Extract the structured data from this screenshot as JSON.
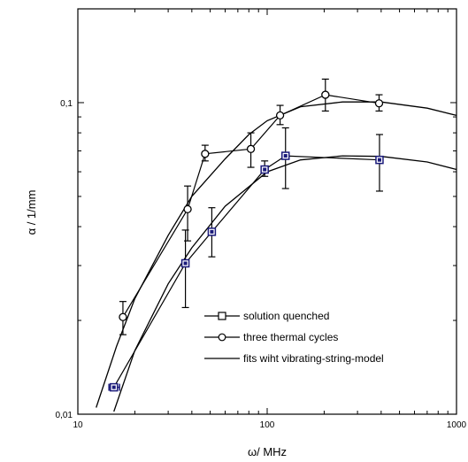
{
  "chart_data": {
    "type": "scatter",
    "x_scale": "log",
    "y_scale": "log",
    "xlim": [
      10,
      1000
    ],
    "ylim": [
      0.01,
      0.2
    ],
    "xlabel": "ω/ MHz",
    "ylabel": "α / 1/mm",
    "x_ticks": [
      {
        "value": 10,
        "label": "10"
      },
      {
        "value": 100,
        "label": "100"
      },
      {
        "value": 1000,
        "label": "1000"
      }
    ],
    "y_ticks": [
      {
        "value": 0.01,
        "label": "0,01"
      },
      {
        "value": 0.1,
        "label": "0,1"
      }
    ],
    "grid": false,
    "legend_position": "lower-right",
    "series": [
      {
        "name": "solution quenched",
        "marker": "square",
        "color": "#1a1a7a",
        "points": [
          {
            "x": 15.5,
            "y": 0.0122,
            "xerr": [
              14.6,
              16.6
            ]
          },
          {
            "x": 37,
            "y": 0.0305,
            "yerr": [
              0.022,
              0.039
            ]
          },
          {
            "x": 51,
            "y": 0.0385,
            "yerr": [
              0.032,
              0.046
            ]
          },
          {
            "x": 97,
            "y": 0.061,
            "yerr": [
              0.058,
              0.065
            ]
          },
          {
            "x": 125,
            "y": 0.0675,
            "yerr": [
              0.053,
              0.083
            ]
          },
          {
            "x": 392,
            "y": 0.0655,
            "yerr": [
              0.052,
              0.079
            ]
          }
        ]
      },
      {
        "name": "three thermal cycles",
        "marker": "circle",
        "color": "#000000",
        "points": [
          {
            "x": 17.3,
            "y": 0.0205,
            "yerr": [
              0.018,
              0.023
            ]
          },
          {
            "x": 38,
            "y": 0.0455,
            "yerr": [
              0.036,
              0.054
            ]
          },
          {
            "x": 47,
            "y": 0.0685,
            "yerr": [
              0.065,
              0.073
            ]
          },
          {
            "x": 82,
            "y": 0.071,
            "yerr": [
              0.062,
              0.08
            ]
          },
          {
            "x": 117,
            "y": 0.091,
            "yerr": [
              0.085,
              0.098
            ]
          },
          {
            "x": 203,
            "y": 0.106,
            "yerr": [
              0.094,
              0.119
            ]
          },
          {
            "x": 390,
            "y": 0.0995,
            "yerr": [
              0.094,
              0.106
            ]
          }
        ]
      },
      {
        "name": "fits wiht vibrating-string-model",
        "marker": "line",
        "color": "#000000",
        "curves": [
          [
            [
              12.5,
              0.0105
            ],
            [
              16,
              0.0165
            ],
            [
              20,
              0.0235
            ],
            [
              30,
              0.0375
            ],
            [
              40,
              0.05
            ],
            [
              60,
              0.066
            ],
            [
              80,
              0.079
            ],
            [
              100,
              0.0875
            ],
            [
              150,
              0.097
            ],
            [
              250,
              0.1005
            ],
            [
              400,
              0.1005
            ],
            [
              700,
              0.096
            ],
            [
              1000,
              0.091
            ]
          ],
          [
            [
              15.5,
              0.0102
            ],
            [
              20,
              0.016
            ],
            [
              30,
              0.0262
            ],
            [
              40,
              0.0342
            ],
            [
              60,
              0.0465
            ],
            [
              100,
              0.06
            ],
            [
              150,
              0.0655
            ],
            [
              250,
              0.0675
            ],
            [
              400,
              0.0672
            ],
            [
              700,
              0.0645
            ],
            [
              1000,
              0.061
            ]
          ]
        ]
      }
    ]
  }
}
